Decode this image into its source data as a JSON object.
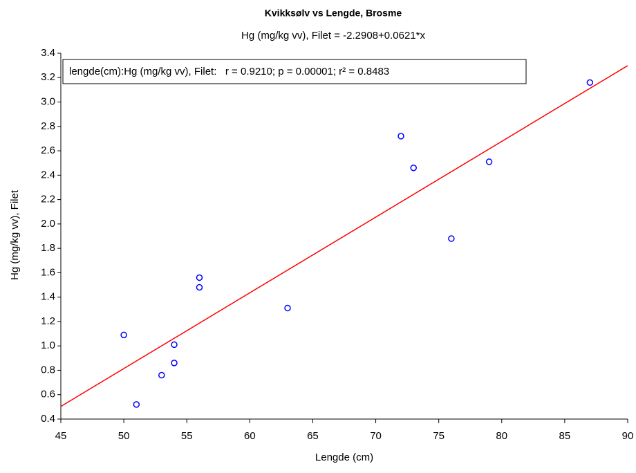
{
  "chart_data": {
    "type": "scatter",
    "title": "Kvikksølv vs Lengde, Brosme",
    "subtitle": "Hg (mg/kg vv), Filet = -2.2908+0.0621*x",
    "annotation": "lengde(cm):Hg (mg/kg vv), Filet:   r = 0.9210; p = 0.00001; r² = 0.8483",
    "xlabel": "Lengde (cm)",
    "ylabel": "Hg (mg/kg vv), Filet",
    "xlim": [
      45,
      90
    ],
    "ylim": [
      0.4,
      3.4
    ],
    "xticks": [
      45,
      50,
      55,
      60,
      65,
      70,
      75,
      80,
      85,
      90
    ],
    "yticks": [
      0.4,
      0.6,
      0.8,
      {
        "value": 1,
        "label": "1.0"
      },
      1.2,
      1.4,
      1.6,
      1.8,
      {
        "value": 2,
        "label": "2.0"
      },
      2.2,
      2.4,
      2.6,
      2.8,
      {
        "value": 3,
        "label": "3.0"
      },
      3.2,
      3.4
    ],
    "series": [
      {
        "color": "#0000ff",
        "x": [
          50,
          51,
          53,
          54,
          54,
          56,
          56,
          63,
          72,
          73,
          76,
          79,
          87
        ],
        "values": [
          1.09,
          0.52,
          0.76,
          0.86,
          1.01,
          1.56,
          1.48,
          1.31,
          2.72,
          2.46,
          1.88,
          2.51,
          3.16
        ]
      }
    ],
    "fit": {
      "intercept": -2.2908,
      "slope": 0.0621,
      "color": "#ff0000"
    }
  }
}
